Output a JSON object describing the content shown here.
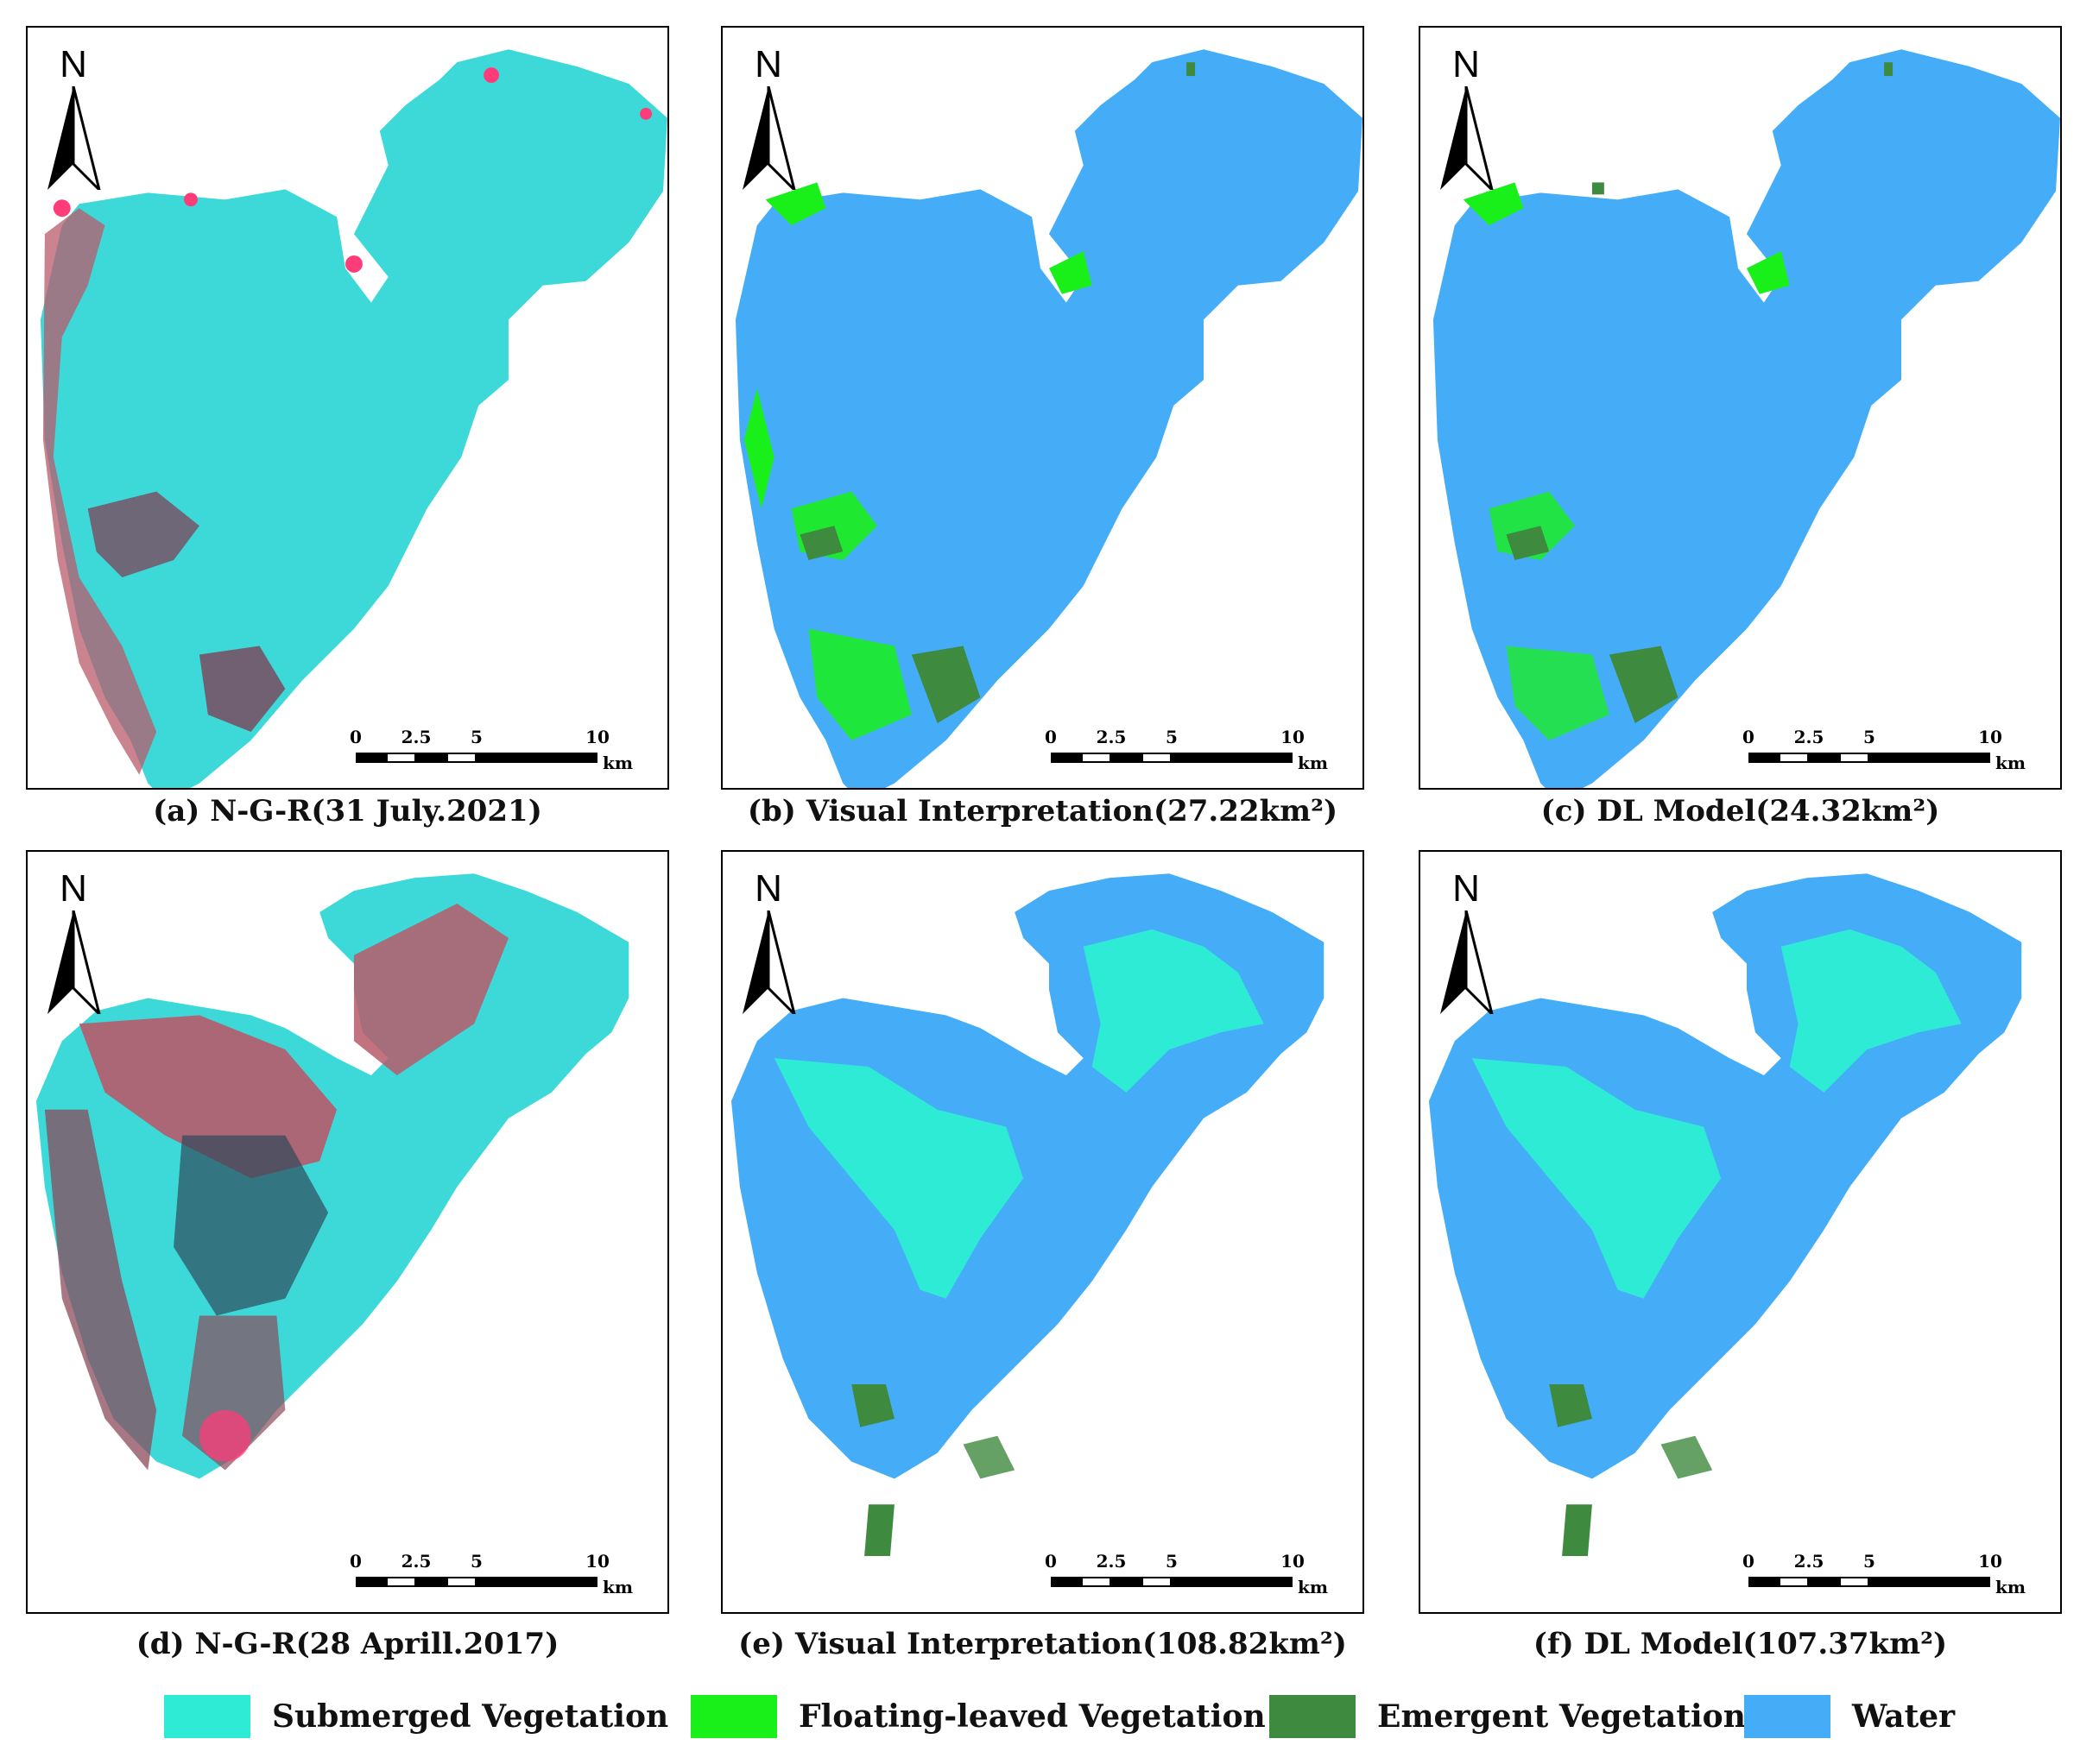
{
  "colors": {
    "submerged": "#2EEBD5",
    "floating": "#19F019",
    "emergent": "#3E8A3E",
    "water": "#45ADF8",
    "ngr_water": "#3DD9D9",
    "ngr_land": "#B85A6A",
    "ngr_pink": "#FF3C7A"
  },
  "north_label": "N",
  "scale": {
    "ticks": [
      "0",
      "2.5",
      "5",
      "10"
    ],
    "unit": "km"
  },
  "panels": [
    {
      "id": "a",
      "type": "ngr_2021",
      "caption": "(a) N-G-R(31 July.2021)"
    },
    {
      "id": "b",
      "type": "class_2021",
      "caption": "(b) Visual Interpretation(27.22km²)"
    },
    {
      "id": "c",
      "type": "class_2021",
      "caption": "(c) DL Model(24.32km²)"
    },
    {
      "id": "d",
      "type": "ngr_2017",
      "caption": "(d) N-G-R(28 Aprill.2017)"
    },
    {
      "id": "e",
      "type": "class_2017",
      "caption": "(e) Visual Interpretation(108.82km²)"
    },
    {
      "id": "f",
      "type": "class_2017",
      "caption": "(f) DL Model(107.37km²)"
    }
  ],
  "legend": [
    {
      "key": "submerged",
      "label": "Submerged Vegetation"
    },
    {
      "key": "floating",
      "label": "Floating-leaved Vegetation"
    },
    {
      "key": "emergent",
      "label": "Emergent Vegetation"
    },
    {
      "key": "water",
      "label": "Water"
    }
  ]
}
